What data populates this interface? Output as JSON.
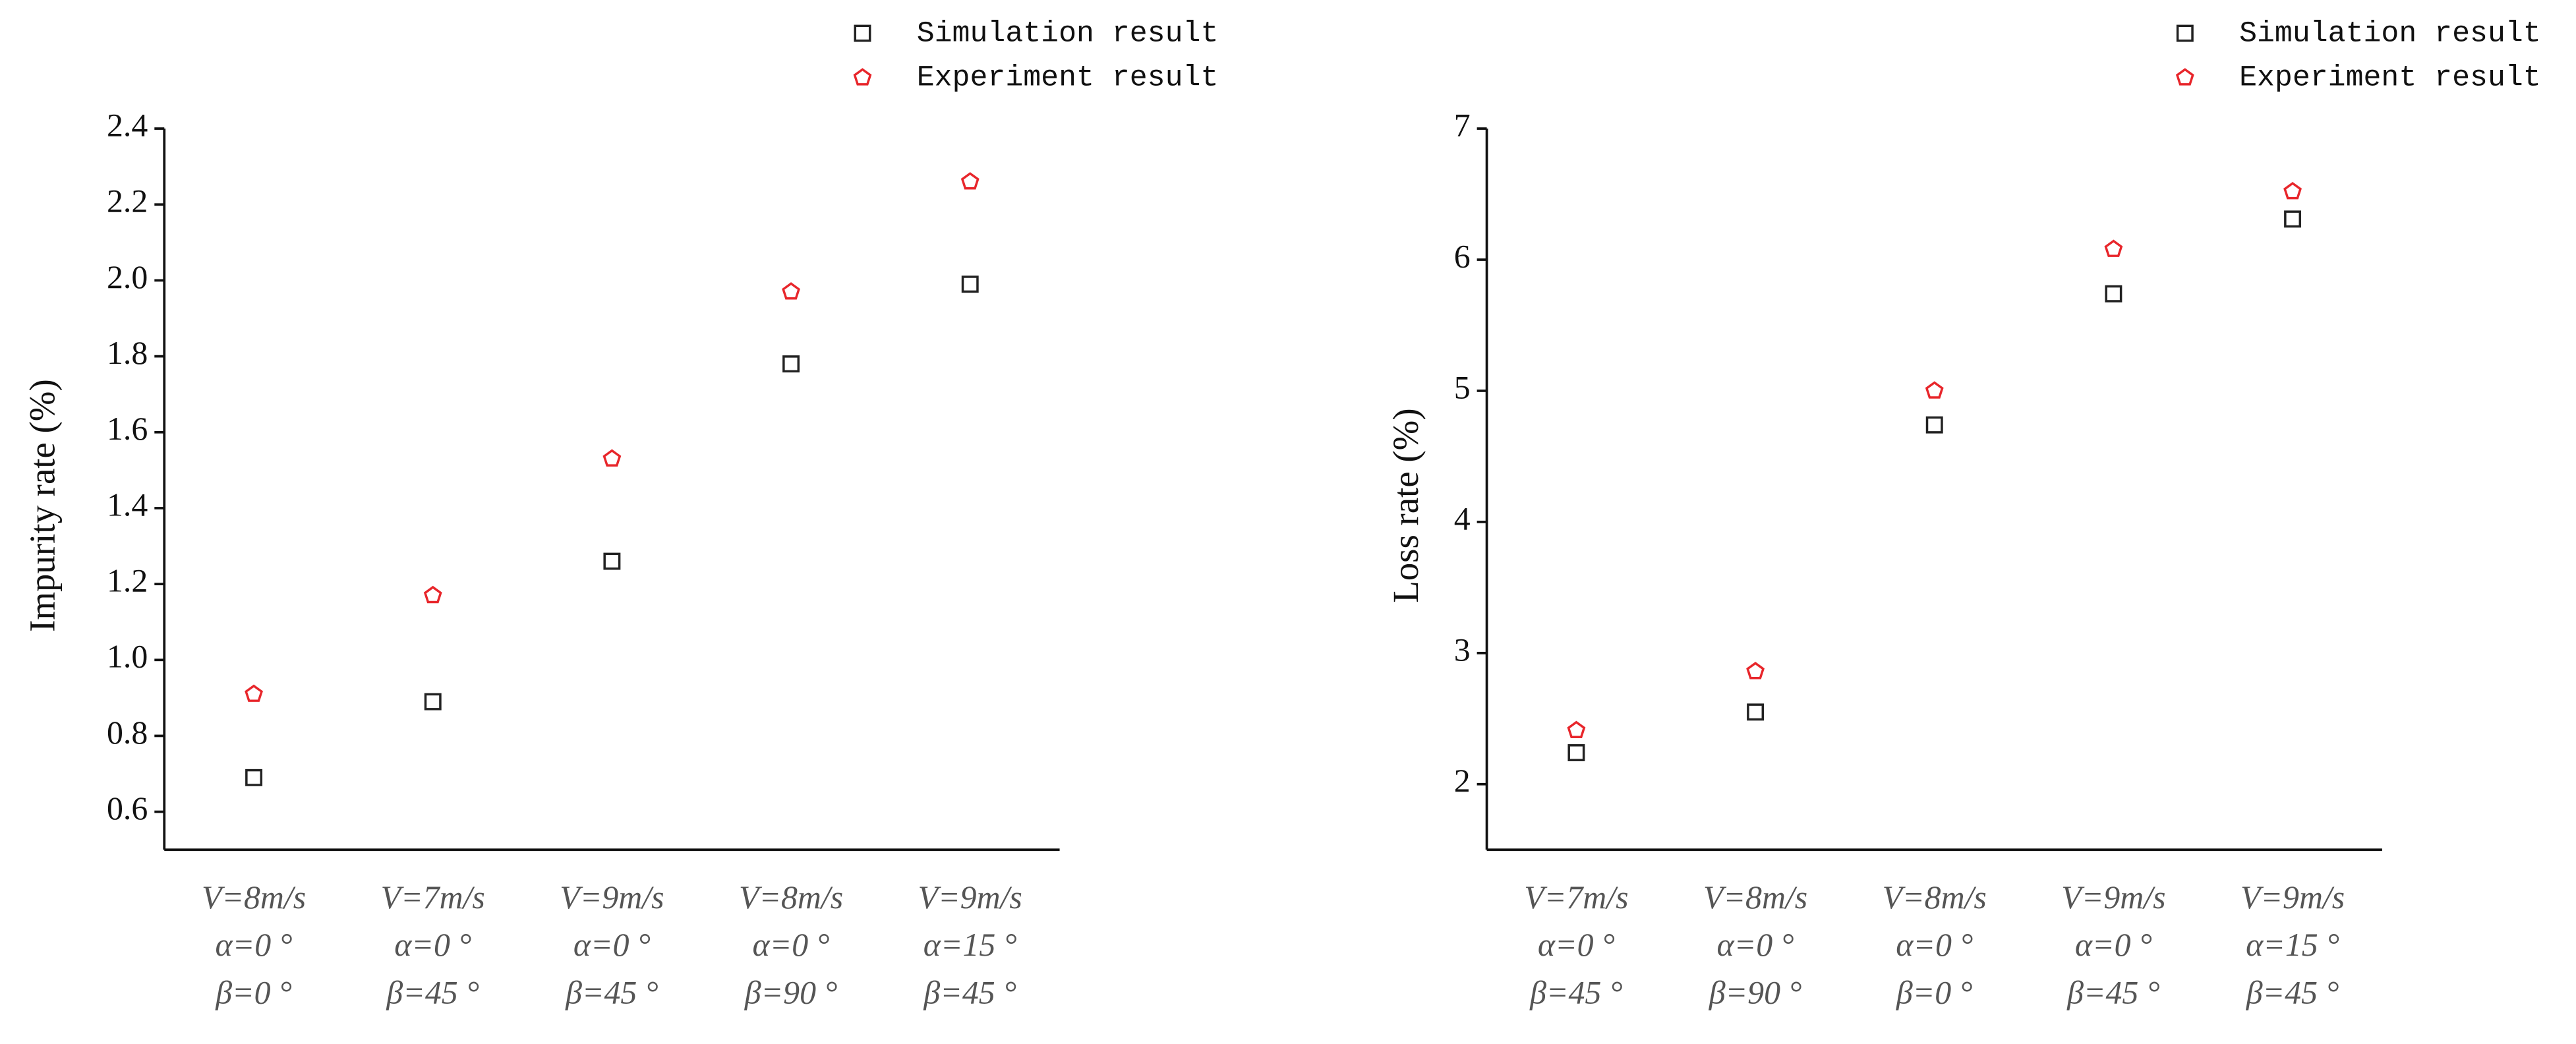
{
  "chart_data": [
    {
      "type": "scatter",
      "ylabel": "Impurity rate (%)",
      "categories": [
        [
          "V=8m/s",
          "α=0 °",
          "β=0 °"
        ],
        [
          "V=7m/s",
          "α=0 °",
          "β=45 °"
        ],
        [
          "V=9m/s",
          "α=0 °",
          "β=45 °"
        ],
        [
          "V=8m/s",
          "α=0 °",
          "β=90 °"
        ],
        [
          "V=9m/s",
          "α=15 °",
          "β=45 °"
        ]
      ],
      "series": [
        {
          "name": "Simulation result",
          "color": "#222222",
          "marker": "square",
          "values": [
            0.69,
            0.89,
            1.26,
            1.78,
            1.99
          ]
        },
        {
          "name": "Experiment result",
          "color": "#e8262b",
          "marker": "pentagon",
          "values": [
            0.91,
            1.17,
            1.53,
            1.97,
            2.26
          ]
        }
      ],
      "ylim": [
        0.5,
        2.4
      ],
      "yticks": [
        0.6,
        0.8,
        {
          "value": 1,
          "label": "1.0"
        },
        1.2,
        1.4,
        1.6,
        1.8,
        {
          "value": 2,
          "label": "2.0"
        },
        2.2,
        2.4
      ],
      "legend": "top-right"
    },
    {
      "type": "scatter",
      "ylabel": "Loss rate (%)",
      "categories": [
        [
          "V=7m/s",
          "α=0 °",
          "β=45 °"
        ],
        [
          "V=8m/s",
          "α=0 °",
          "β=90 °"
        ],
        [
          "V=8m/s",
          "α=0 °",
          "β=0 °"
        ],
        [
          "V=9m/s",
          "α=0 °",
          "β=45 °"
        ],
        [
          "V=9m/s",
          "α=15 °",
          "β=45 °"
        ]
      ],
      "series": [
        {
          "name": "Simulation result",
          "color": "#222222",
          "marker": "square",
          "values": [
            2.24,
            2.55,
            4.74,
            5.74,
            6.31
          ]
        },
        {
          "name": "Experiment result",
          "color": "#e8262b",
          "marker": "pentagon",
          "values": [
            2.41,
            2.86,
            5.0,
            6.08,
            6.52
          ]
        }
      ],
      "ylim": [
        1.5,
        7
      ],
      "yticks": [
        2,
        3,
        4,
        5,
        6,
        7
      ],
      "legend": "top-right"
    }
  ]
}
